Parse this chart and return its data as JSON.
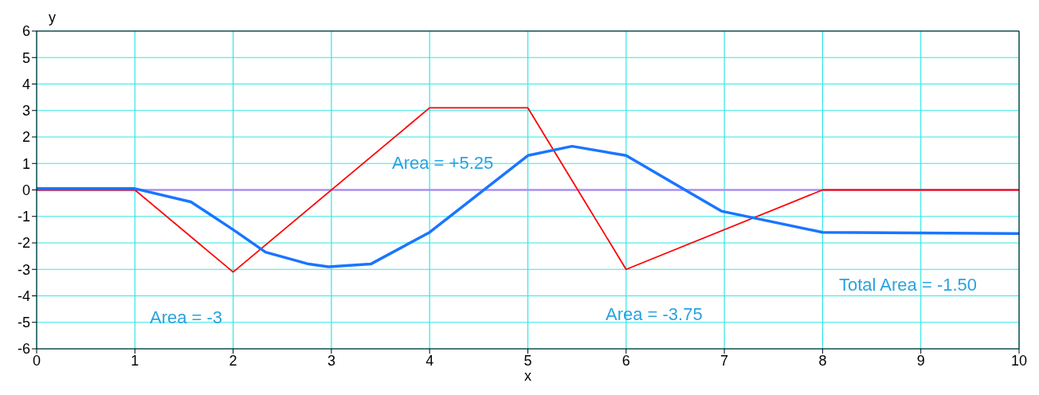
{
  "chart_data": {
    "type": "line",
    "xlabel": "x",
    "ylabel": "y",
    "xlim": [
      0,
      10
    ],
    "xticks": [
      0,
      1,
      2,
      3,
      4,
      5,
      6,
      7,
      8,
      9,
      10
    ],
    "ylim": [
      -6,
      6
    ],
    "yticks": [
      -6,
      -5,
      -4,
      -3,
      -2,
      -1,
      0,
      1,
      2,
      3,
      4,
      5,
      6
    ],
    "grid": true,
    "marker": "none",
    "line_style": "solid",
    "series": [
      {
        "color": "#ff0000",
        "x": [
          0,
          1,
          2,
          4,
          5,
          6,
          8,
          10
        ],
        "values": [
          0,
          0,
          -3.1,
          3.1,
          3.1,
          -3,
          0,
          0
        ]
      },
      {
        "color": "#1a75ff",
        "x": [
          0,
          1,
          1.57,
          2,
          2.33,
          2.77,
          2.97,
          3.4,
          4,
          5,
          5.45,
          6,
          6.97,
          8,
          10
        ],
        "values": [
          0.05,
          0.05,
          -0.45,
          -1.5,
          -2.35,
          -2.8,
          -2.9,
          -2.8,
          -1.6,
          1.3,
          1.65,
          1.3,
          -0.8,
          -1.6,
          -1.65
        ]
      }
    ],
    "ref_lines": [
      {
        "axis": "y",
        "value": 0,
        "color": "#a98ff0"
      }
    ],
    "annotations": [
      "Area = -3",
      "Area = +5.25",
      "Area = -3.75",
      "Total Area = -1.50"
    ]
  }
}
